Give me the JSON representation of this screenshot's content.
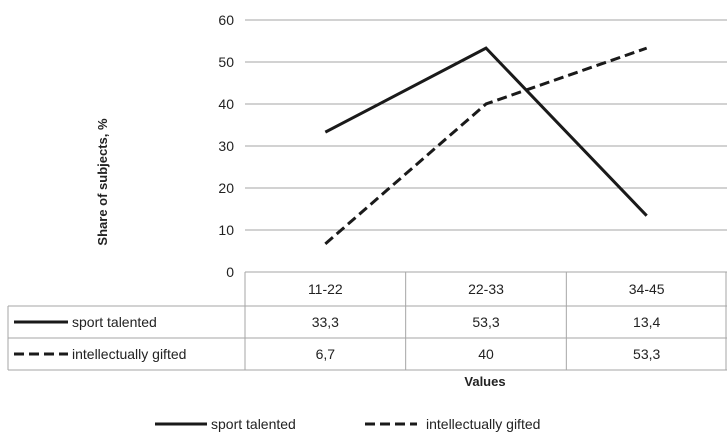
{
  "chart_data": {
    "type": "line",
    "categories": [
      "11-22",
      "22-33",
      "34-45"
    ],
    "series": [
      {
        "name": "sport talented",
        "values": [
          33.3,
          53.3,
          13.4
        ],
        "labels": [
          "33,3",
          "53,3",
          "13,4"
        ],
        "style": "solid",
        "color": "#1a1a1a"
      },
      {
        "name": "intellectually gifted",
        "values": [
          6.7,
          40,
          53.3
        ],
        "labels": [
          "6,7",
          "40",
          "53,3"
        ],
        "style": "dashed",
        "color": "#1a1a1a"
      }
    ],
    "yticks": [
      "0",
      "10",
      "20",
      "30",
      "40",
      "50",
      "60"
    ],
    "ylim": [
      0,
      60
    ],
    "ylabel": "Share of subjects, %",
    "xlabel": "Values",
    "grid": true,
    "legend_position": "bottom",
    "data_table": true
  }
}
